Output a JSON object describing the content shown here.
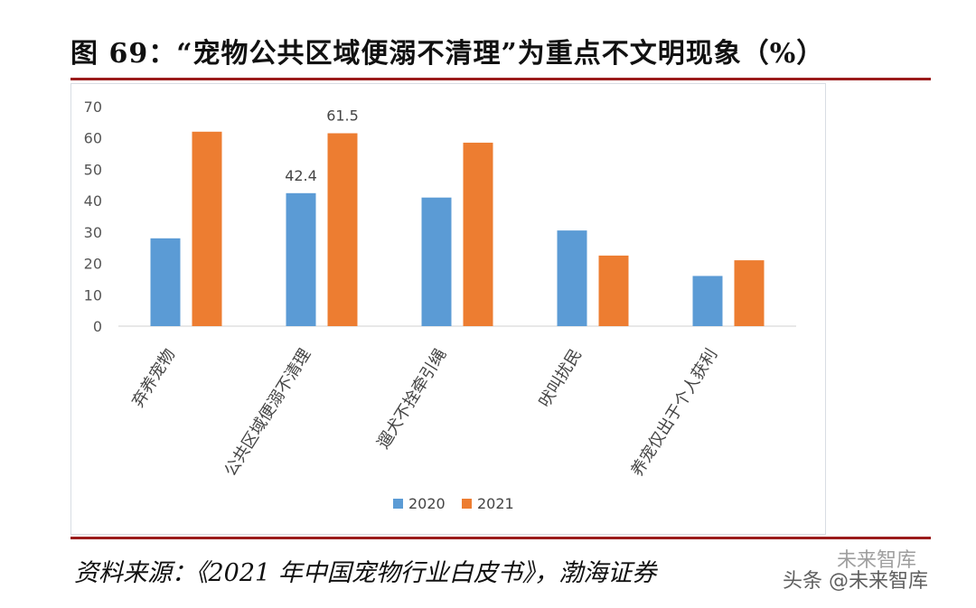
{
  "title": "图 69：“宠物公共区域便溺不清理”为重点不文明现象（%）",
  "source": "资料来源：《2021 年中国宠物行业白皮书》，渤海证券",
  "watermark": {
    "line1": "未来智库",
    "line2": "头条 @未来智库"
  },
  "colors": {
    "series_2020": "#5b9bd5",
    "series_2021": "#ed7d31",
    "rule": "#9b1b1b"
  },
  "chart_data": {
    "type": "bar",
    "title": "",
    "xlabel": "",
    "ylabel": "",
    "ylim": [
      0,
      70
    ],
    "yticks": [
      0,
      10,
      20,
      30,
      40,
      50,
      60,
      70
    ],
    "grid": false,
    "legend": "bottom",
    "categories": [
      "弃养宠物",
      "公共区域便溺不清理",
      "遛犬不拴牵引绳",
      "吠叫扰民",
      "养宠仅出于个人获利"
    ],
    "series": [
      {
        "name": "2020",
        "values": [
          28,
          42.4,
          41,
          30.5,
          16
        ]
      },
      {
        "name": "2021",
        "values": [
          62,
          61.5,
          58.5,
          22.5,
          21
        ]
      }
    ],
    "data_labels": [
      {
        "series": 0,
        "index": 1,
        "text": "42.4"
      },
      {
        "series": 1,
        "index": 1,
        "text": "61.5"
      }
    ]
  }
}
